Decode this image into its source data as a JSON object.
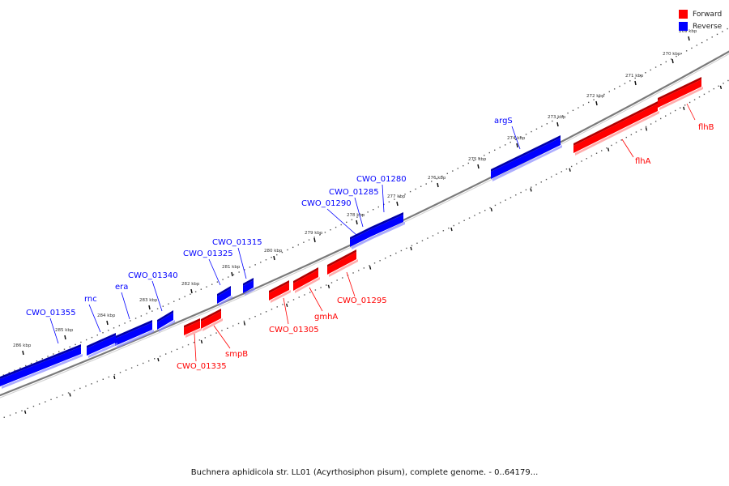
{
  "legend": {
    "items": [
      {
        "label": "Forward",
        "color": "#ff0000"
      },
      {
        "label": "Reverse",
        "color": "#0000ff"
      }
    ]
  },
  "caption": "Buchnera aphidicola str. LL01 (Acyrthosiphon pisum), complete genome. - 0..64179...",
  "ticks": {
    "outer": [
      "269 kbp",
      "270 kbp",
      "271 kbp",
      "272 kbp",
      "273 kbp",
      "274 kbp",
      "275 kbp",
      "276 kbp",
      "277 kbp",
      "278 kbp",
      "279 kbp",
      "280 kbp",
      "281 kbp",
      "282 kbp",
      "283 kbp",
      "284 kbp",
      "285 kbp",
      "286 kbp"
    ]
  },
  "genes": [
    {
      "name": "flhB",
      "strand": "forward"
    },
    {
      "name": "flhA",
      "strand": "forward"
    },
    {
      "name": "argS",
      "strand": "reverse"
    },
    {
      "name": "CWO_01280",
      "strand": "reverse"
    },
    {
      "name": "CWO_01285",
      "strand": "reverse"
    },
    {
      "name": "CWO_01290",
      "strand": "reverse"
    },
    {
      "name": "CWO_01295",
      "strand": "forward"
    },
    {
      "name": "gmhA",
      "strand": "forward"
    },
    {
      "name": "CWO_01305",
      "strand": "forward"
    },
    {
      "name": "CWO_01315",
      "strand": "reverse"
    },
    {
      "name": "CWO_01325",
      "strand": "reverse"
    },
    {
      "name": "smpB",
      "strand": "forward"
    },
    {
      "name": "CWO_01335",
      "strand": "forward"
    },
    {
      "name": "CWO_01340",
      "strand": "reverse"
    },
    {
      "name": "era",
      "strand": "reverse"
    },
    {
      "name": "rnc",
      "strand": "reverse"
    },
    {
      "name": "CWO_01355",
      "strand": "reverse"
    },
    {
      "name": "",
      "strand": "reverse"
    }
  ]
}
